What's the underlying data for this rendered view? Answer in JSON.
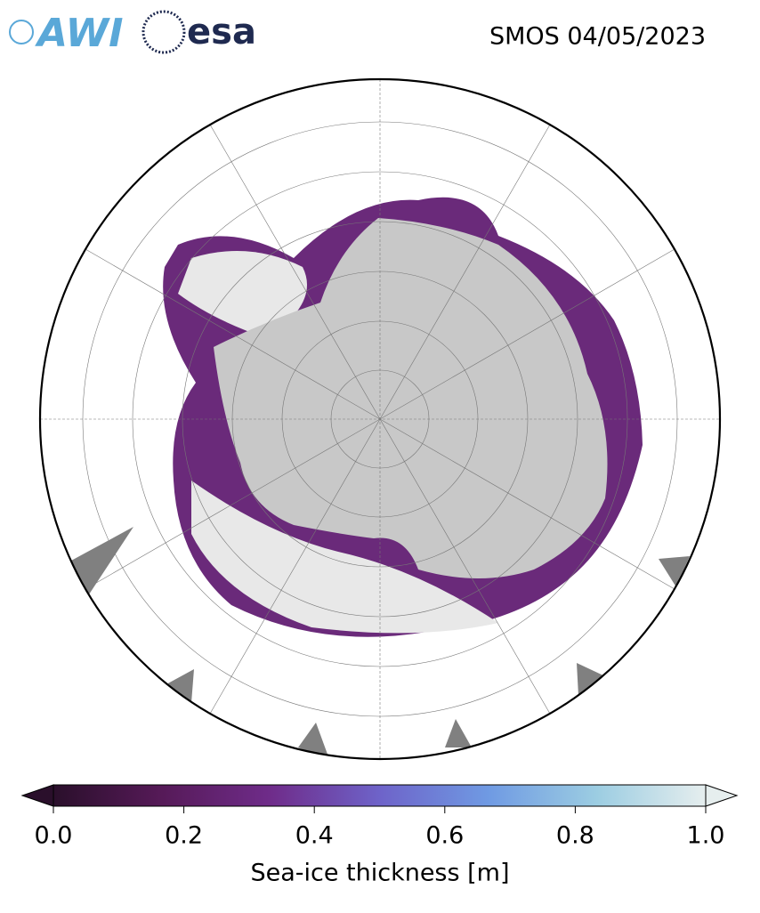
{
  "header": {
    "logos": [
      "AWI",
      "esa"
    ],
    "title": "SMOS 04/05/2023"
  },
  "colorbar": {
    "label": "Sea-ice thickness [m]",
    "lim": [
      0,
      1
    ],
    "ticks": [
      {
        "value": 0,
        "label": "0.0"
      },
      {
        "value": 0.2,
        "label": "0.2"
      },
      {
        "value": 0.4,
        "label": "0.4"
      },
      {
        "value": 0.6,
        "label": "0.6"
      },
      {
        "value": 0.8,
        "label": "0.8"
      },
      {
        "value": 1,
        "label": "1.0"
      }
    ],
    "colors": [
      "#2a0f2b",
      "#561a58",
      "#6f2c8a",
      "#6e63c9",
      "#6f9ae3",
      "#9ccde2",
      "#e6eeee"
    ]
  }
}
